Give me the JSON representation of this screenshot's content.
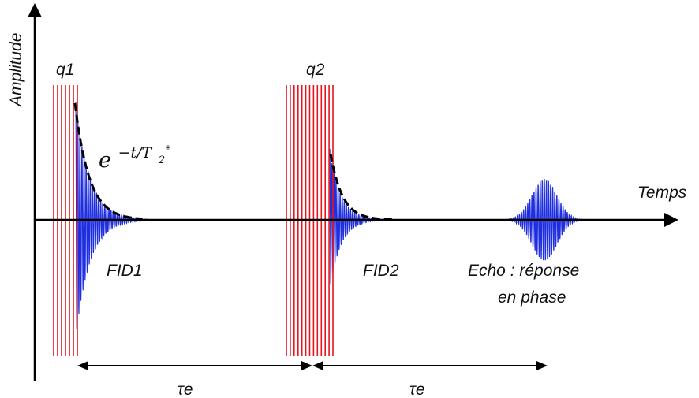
{
  "axes": {
    "y_label": "Amplitude",
    "x_label": "Temps"
  },
  "pulses": [
    {
      "label": "q1"
    },
    {
      "label": "q2"
    }
  ],
  "decay_formula": {
    "base": "e",
    "exponent": "−t/T",
    "subscript": "2",
    "superscript": "*"
  },
  "signals": {
    "fid1": "FID1",
    "fid2": "FID2",
    "echo_line1": "Echo : réponse",
    "echo_line2": "en phase"
  },
  "intervals": [
    {
      "label": "τe"
    },
    {
      "label": "τe"
    }
  ],
  "colors": {
    "pulse": "#e8141e",
    "signal": "#1f2fe0",
    "envelope": "#000000",
    "axis": "#000000"
  }
}
